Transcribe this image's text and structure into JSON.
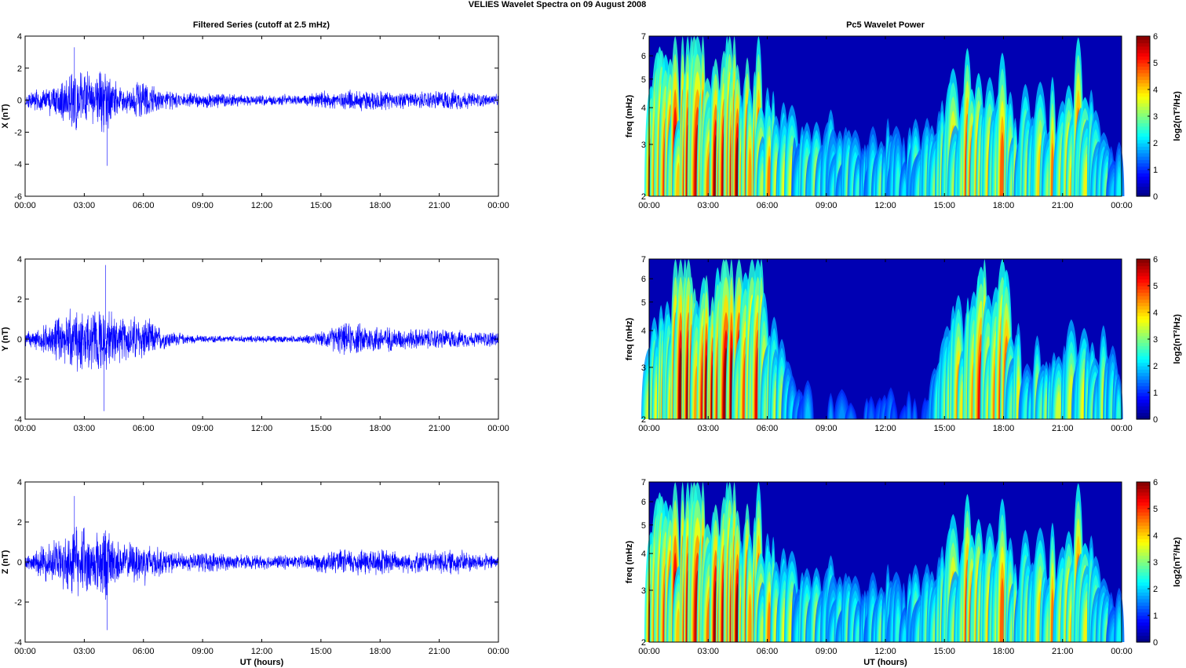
{
  "figure": {
    "title": "VELIES Wavelet Spectra on 09 August    2008",
    "left_column_title": "Filtered Series (cutoff at 2.5 mHz)",
    "right_column_title": "Pc5 Wavelet Power"
  },
  "chart_data": [
    {
      "type": "line",
      "title": "Filtered Series (cutoff at 2.5 mHz)",
      "xlabel": "",
      "ylabel": "X (nT)",
      "ylim": [
        -6,
        4
      ],
      "yticks": [
        "-6",
        "-4",
        "-2",
        "0",
        "2",
        "4"
      ],
      "xticks": [
        "00:00",
        "03:00",
        "06:00",
        "09:00",
        "12:00",
        "15:00",
        "18:00",
        "21:00",
        "00:00"
      ],
      "xlim_hours": [
        0,
        24
      ],
      "color": "#0000ff",
      "envelope": [
        {
          "x": [
            0,
            1,
            2,
            2.5,
            3,
            3.5,
            4,
            4.5,
            5,
            5.5,
            6,
            7,
            8,
            9,
            10,
            11,
            12,
            13,
            14,
            15,
            16,
            17,
            18,
            19,
            20,
            21,
            22,
            23,
            24
          ]
        },
        {
          "amplitude": [
            0.5,
            0.9,
            1.6,
            2.5,
            2.0,
            1.6,
            2.4,
            1.4,
            1.0,
            1.3,
            1.4,
            0.7,
            0.5,
            0.6,
            0.5,
            0.4,
            0.4,
            0.4,
            0.4,
            0.6,
            0.7,
            0.8,
            0.8,
            0.6,
            0.6,
            0.7,
            0.7,
            0.5,
            0.4
          ]
        }
      ],
      "extremes": {
        "max": 3.3,
        "min": -4.1,
        "max_time": "02:30",
        "min_time": "04:10"
      }
    },
    {
      "type": "line",
      "xlabel": "",
      "ylabel": "Y (nT)",
      "ylim": [
        -4,
        4
      ],
      "yticks": [
        "-4",
        "-2",
        "0",
        "2",
        "4"
      ],
      "xticks": [
        "00:00",
        "03:00",
        "06:00",
        "09:00",
        "12:00",
        "15:00",
        "18:00",
        "21:00",
        "00:00"
      ],
      "xlim_hours": [
        0,
        24
      ],
      "color": "#0000ff",
      "envelope": [
        {
          "x": [
            0,
            1,
            2,
            2.5,
            3,
            3.5,
            4,
            4.5,
            5,
            5.5,
            6,
            7,
            8,
            9,
            10,
            11,
            12,
            13,
            14,
            15,
            16,
            17,
            18,
            19,
            20,
            21,
            22,
            23,
            24
          ]
        },
        {
          "amplitude": [
            0.4,
            0.8,
            1.4,
            2.0,
            1.7,
            1.6,
            2.2,
            1.5,
            1.2,
            1.4,
            1.3,
            0.6,
            0.3,
            0.2,
            0.2,
            0.2,
            0.2,
            0.2,
            0.2,
            0.4,
            0.9,
            0.9,
            0.8,
            0.6,
            0.6,
            0.6,
            0.5,
            0.4,
            0.5
          ]
        }
      ],
      "extremes": {
        "max": 3.7,
        "min": -3.6,
        "max_time": "04:05",
        "min_time": "04:00"
      }
    },
    {
      "type": "line",
      "xlabel": "UT (hours)",
      "ylabel": "Z (nT)",
      "ylim": [
        -4,
        4
      ],
      "yticks": [
        "-4",
        "-2",
        "0",
        "2",
        "4"
      ],
      "xticks": [
        "00:00",
        "03:00",
        "06:00",
        "09:00",
        "12:00",
        "15:00",
        "18:00",
        "21:00",
        "00:00"
      ],
      "xlim_hours": [
        0,
        24
      ],
      "color": "#0000ff",
      "envelope": [
        {
          "x": [
            0,
            1,
            2,
            2.5,
            3,
            3.5,
            4,
            4.5,
            5,
            5.5,
            6,
            7,
            8,
            9,
            10,
            11,
            12,
            13,
            14,
            15,
            16,
            17,
            18,
            19,
            20,
            21,
            22,
            23,
            24
          ]
        },
        {
          "amplitude": [
            0.5,
            1.0,
            1.6,
            2.3,
            1.9,
            1.6,
            2.3,
            1.4,
            1.0,
            1.2,
            1.3,
            0.7,
            0.5,
            0.6,
            0.5,
            0.4,
            0.4,
            0.4,
            0.4,
            0.6,
            0.7,
            0.8,
            0.8,
            0.6,
            0.6,
            0.7,
            0.7,
            0.5,
            0.4
          ]
        }
      ],
      "extremes": {
        "max": 3.3,
        "min": -3.4,
        "max_time": "02:30",
        "min_time": "04:10"
      }
    },
    {
      "type": "heatmap",
      "title": "Pc5 Wavelet Power",
      "xlabel": "",
      "ylabel": "freq (mHz)",
      "ylim": [
        2,
        7
      ],
      "yscale": "log",
      "yticks": [
        "2",
        "3",
        "4",
        "5",
        "6",
        "7"
      ],
      "xticks": [
        "00:00",
        "03:00",
        "06:00",
        "09:00",
        "12:00",
        "15:00",
        "18:00",
        "21:00",
        "00:00"
      ],
      "xlim_hours": [
        0,
        24
      ],
      "colorbar": {
        "label": "log2(nT²/Hz)",
        "range": [
          0,
          6
        ],
        "ticks": [
          "0",
          "1",
          "2",
          "3",
          "4",
          "5",
          "6"
        ],
        "colormap": "jet"
      },
      "activity": {
        "hours": [
          0,
          1,
          2,
          3,
          4,
          5,
          6,
          7,
          8,
          9,
          10,
          11,
          12,
          13,
          14,
          15,
          16,
          17,
          18,
          19,
          20,
          21,
          22,
          23,
          24
        ],
        "level": [
          0.7,
          0.9,
          1.0,
          1.0,
          1.0,
          0.95,
          0.75,
          0.55,
          0.45,
          0.5,
          0.45,
          0.35,
          0.45,
          0.4,
          0.45,
          0.7,
          0.75,
          0.8,
          0.75,
          0.55,
          0.55,
          0.85,
          0.8,
          0.45,
          0.35
        ]
      }
    },
    {
      "type": "heatmap",
      "xlabel": "",
      "ylabel": "freq (mHz)",
      "ylim": [
        2,
        7
      ],
      "yscale": "log",
      "yticks": [
        "2",
        "3",
        "4",
        "5",
        "6",
        "7"
      ],
      "xticks": [
        "00:00",
        "03:00",
        "06:00",
        "09:00",
        "12:00",
        "15:00",
        "18:00",
        "21:00",
        "00:00"
      ],
      "xlim_hours": [
        0,
        24
      ],
      "colorbar": {
        "label": "log2(nT²/Hz)",
        "range": [
          0,
          6
        ],
        "ticks": [
          "0",
          "1",
          "2",
          "3",
          "4",
          "5",
          "6"
        ],
        "colormap": "jet"
      },
      "activity": {
        "hours": [
          0,
          1,
          2,
          3,
          4,
          5,
          6,
          7,
          8,
          9,
          10,
          11,
          12,
          13,
          14,
          15,
          16,
          17,
          18,
          19,
          20,
          21,
          22,
          23,
          24
        ],
        "level": [
          0.6,
          0.85,
          1.0,
          1.0,
          1.0,
          0.95,
          0.8,
          0.35,
          0.2,
          0.2,
          0.15,
          0.15,
          0.15,
          0.15,
          0.15,
          0.55,
          0.85,
          0.85,
          0.8,
          0.45,
          0.5,
          0.55,
          0.5,
          0.6,
          0.3
        ]
      }
    },
    {
      "type": "heatmap",
      "xlabel": "UT (hours)",
      "ylabel": "freq (mHz)",
      "ylim": [
        2,
        7
      ],
      "yscale": "log",
      "yticks": [
        "2",
        "3",
        "4",
        "5",
        "6",
        "7"
      ],
      "xticks": [
        "00:00",
        "03:00",
        "06:00",
        "09:00",
        "12:00",
        "15:00",
        "18:00",
        "21:00",
        "00:00"
      ],
      "xlim_hours": [
        0,
        24
      ],
      "colorbar": {
        "label": "log2(nT²/Hz)",
        "range": [
          0,
          6
        ],
        "ticks": [
          "0",
          "1",
          "2",
          "3",
          "4",
          "5",
          "6"
        ],
        "colormap": "jet"
      },
      "activity": {
        "hours": [
          0,
          1,
          2,
          3,
          4,
          5,
          6,
          7,
          8,
          9,
          10,
          11,
          12,
          13,
          14,
          15,
          16,
          17,
          18,
          19,
          20,
          21,
          22,
          23,
          24
        ],
        "level": [
          0.7,
          0.9,
          1.0,
          1.0,
          1.0,
          0.95,
          0.75,
          0.55,
          0.45,
          0.5,
          0.45,
          0.35,
          0.45,
          0.4,
          0.45,
          0.7,
          0.75,
          0.8,
          0.75,
          0.55,
          0.55,
          0.85,
          0.8,
          0.45,
          0.35
        ]
      }
    }
  ]
}
